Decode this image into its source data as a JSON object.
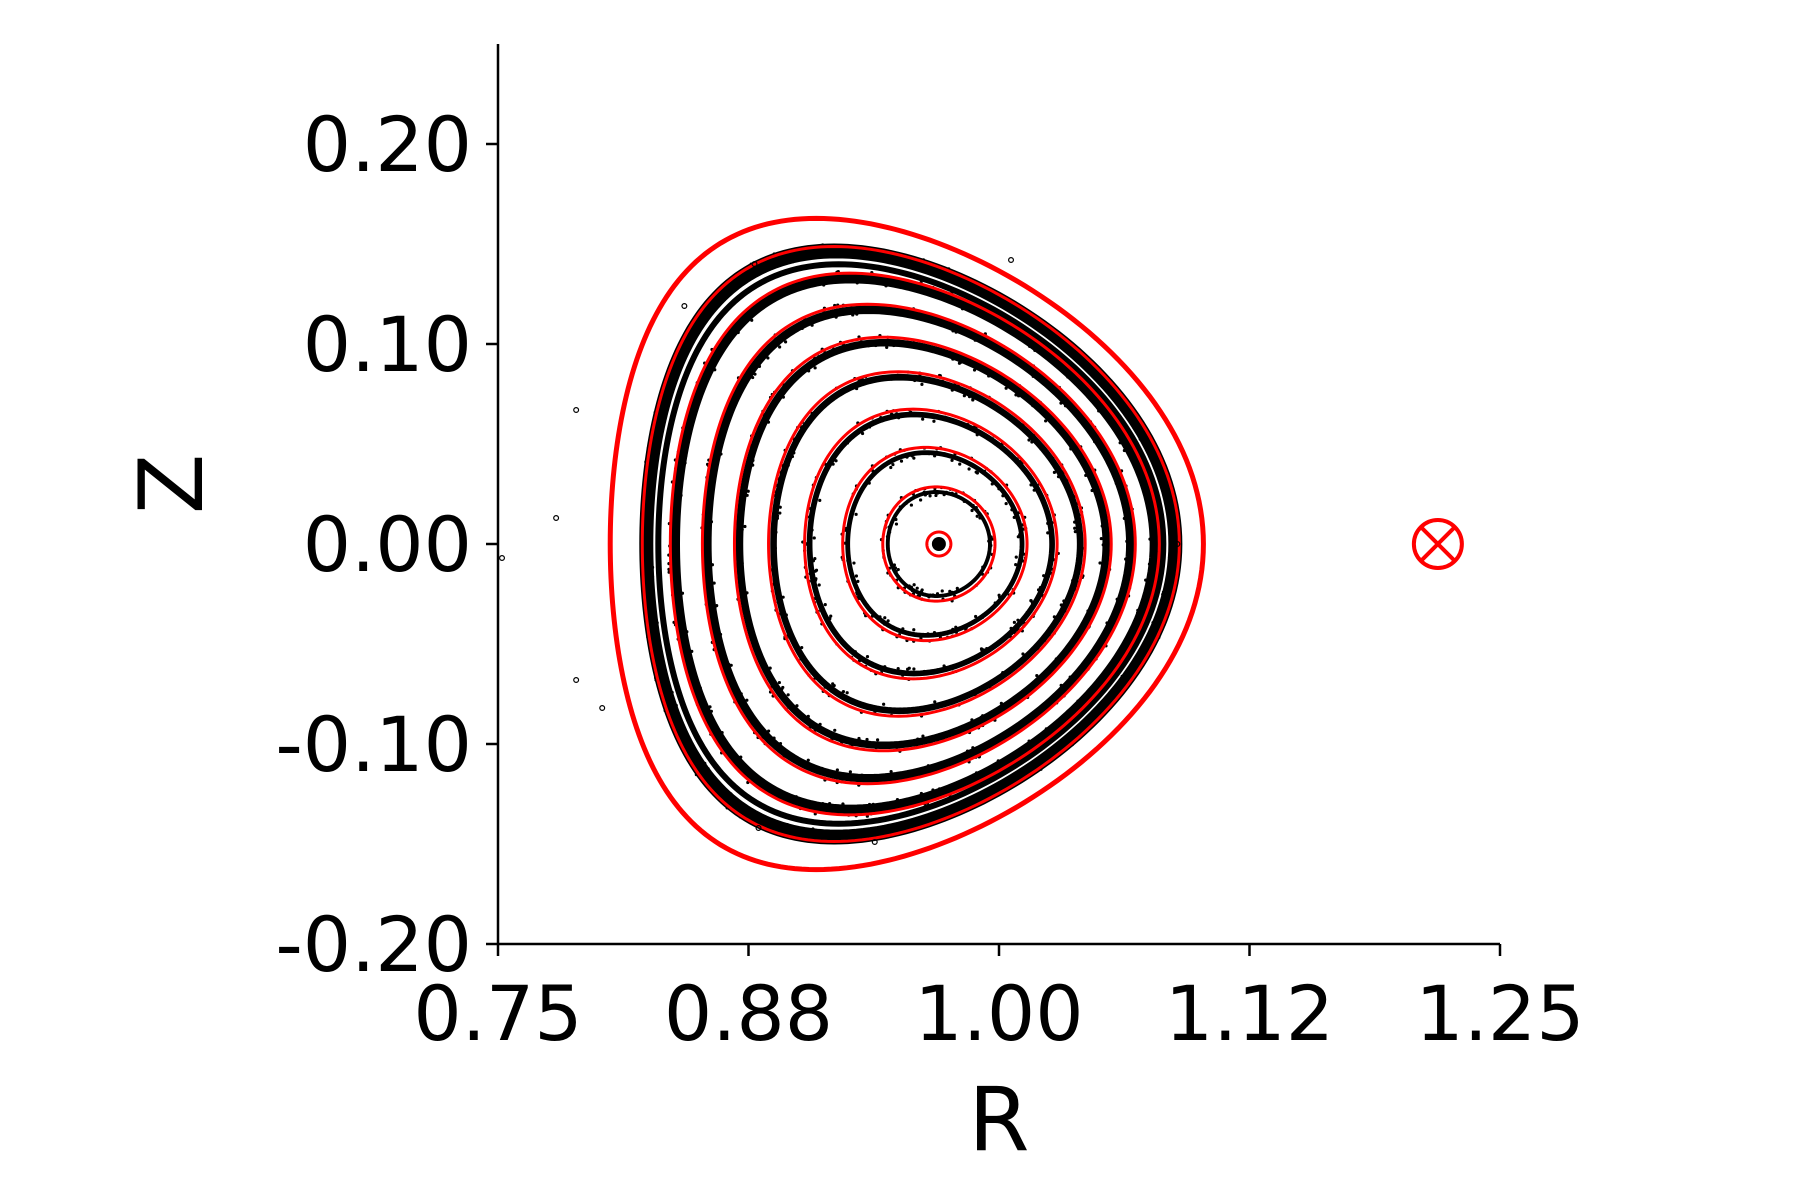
{
  "chart_data": {
    "type": "scatter",
    "title": "",
    "xlabel": "R",
    "ylabel": "Z",
    "xlim": [
      0.75,
      1.25
    ],
    "ylim": [
      -0.2,
      0.25
    ],
    "xticks": [
      0.75,
      0.875,
      1.0,
      1.125,
      1.25
    ],
    "xtick_labels": [
      "0.75",
      "0.88",
      "1.00",
      "1.12",
      "1.25"
    ],
    "yticks": [
      -0.2,
      -0.1,
      0.0,
      0.1,
      0.2
    ],
    "ytick_labels": [
      "-0.20",
      "-0.10",
      "0.00",
      "0.10",
      "0.20"
    ],
    "grid": false,
    "spines": [
      "left",
      "bottom"
    ],
    "magnetic_axis": {
      "R": 0.97,
      "Z": 0.0
    },
    "poincare_color": "#000000",
    "contour_color": "#ff0000",
    "flux_surfaces": [
      {
        "a": 0.006,
        "kappa": 1.0,
        "delta": 0.0,
        "shift": 0.0,
        "poincare": false,
        "width": 3
      },
      {
        "a": 0.028,
        "kappa": 1.02,
        "delta": 0.05,
        "shift": 0.0,
        "poincare": true,
        "width": 3
      },
      {
        "a": 0.046,
        "kappa": 1.05,
        "delta": 0.1,
        "shift": 0.002,
        "poincare": true,
        "width": 3
      },
      {
        "a": 0.063,
        "kappa": 1.07,
        "delta": 0.14,
        "shift": 0.004,
        "poincare": true,
        "width": 3
      },
      {
        "a": 0.079,
        "kappa": 1.09,
        "delta": 0.18,
        "shift": 0.006,
        "poincare": true,
        "width": 3
      },
      {
        "a": 0.094,
        "kappa": 1.1,
        "delta": 0.21,
        "shift": 0.008,
        "poincare": true,
        "width": 3
      },
      {
        "a": 0.108,
        "kappa": 1.11,
        "delta": 0.24,
        "shift": 0.01,
        "poincare": true,
        "width": 3
      },
      {
        "a": 0.122,
        "kappa": 1.11,
        "delta": 0.27,
        "shift": 0.012,
        "poincare": true,
        "width": 3
      },
      {
        "a": 0.134,
        "kappa": 1.11,
        "delta": 0.29,
        "shift": 0.014,
        "poincare": true,
        "width": 3
      },
      {
        "a": 0.148,
        "kappa": 1.1,
        "delta": 0.31,
        "shift": 0.016,
        "poincare": false,
        "width": 5
      }
    ],
    "scattered_points": [
      [
        0.878,
        0.14
      ],
      [
        1.006,
        0.142
      ],
      [
        0.843,
        0.119
      ],
      [
        0.789,
        0.067
      ],
      [
        0.779,
        0.013
      ],
      [
        0.752,
        -0.007
      ],
      [
        0.789,
        -0.068
      ],
      [
        0.802,
        -0.082
      ],
      [
        0.88,
        -0.142
      ],
      [
        0.938,
        -0.149
      ],
      [
        1.089,
        0.0
      ]
    ],
    "coil_marker": {
      "R": 1.219,
      "Z": 0.0,
      "symbol": "circle-x",
      "color": "#ff0000"
    }
  }
}
